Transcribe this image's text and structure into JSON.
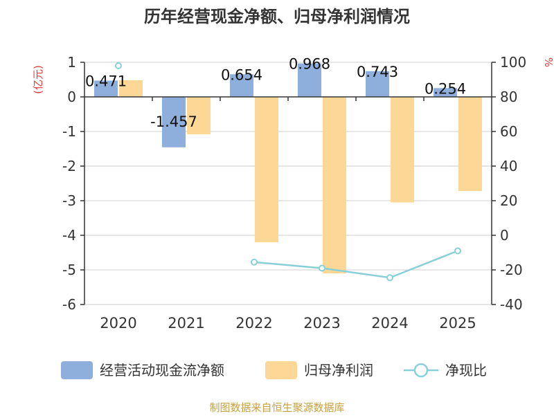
{
  "chart_data": {
    "type": "bar",
    "title": "历年经营现金净额、归母净利润情况",
    "categories": [
      "2020",
      "2021",
      "2022",
      "2023",
      "2024",
      "2025"
    ],
    "left_axis": {
      "label": "(亿元)",
      "range": [
        -6,
        1
      ],
      "ticks": [
        "1",
        "0",
        "-1",
        "-2",
        "-3",
        "-4",
        "-5",
        "-6"
      ]
    },
    "right_axis": {
      "label": "%",
      "range": [
        -40,
        100
      ],
      "ticks": [
        "100",
        "80",
        "60",
        "40",
        "20",
        "0",
        "-20",
        "-40"
      ]
    },
    "grid": true,
    "legend_position": "bottom",
    "series": [
      {
        "name": "经营活动现金流净额",
        "type": "bar",
        "axis": "left",
        "color": "#8eaedb",
        "values": [
          0.471,
          -1.457,
          0.654,
          0.968,
          0.743,
          0.254
        ],
        "labels": [
          "0.471",
          "-1.457",
          "0.654",
          "0.968",
          "0.743",
          "0.254"
        ]
      },
      {
        "name": "归母净利润",
        "type": "bar",
        "axis": "left",
        "color": "#fdd795",
        "values": [
          0.48,
          -1.08,
          -4.2,
          -5.1,
          -3.05,
          -2.72
        ]
      },
      {
        "name": "净现比",
        "type": "line",
        "axis": "right",
        "color": "#88d0d8",
        "values": [
          98,
          null,
          -15.5,
          -19,
          -24.5,
          -9
        ]
      }
    ],
    "source": "制图数据来自恒生聚源数据库"
  }
}
